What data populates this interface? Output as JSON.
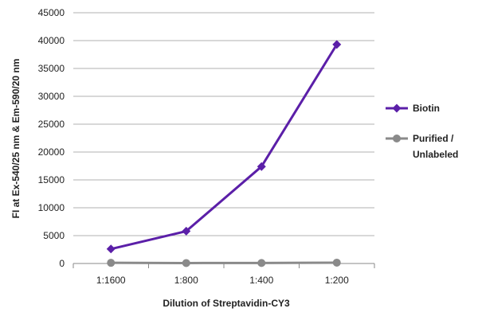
{
  "chart_data": {
    "type": "line",
    "categories": [
      "1:1600",
      "1:800",
      "1:400",
      "1:200"
    ],
    "series": [
      {
        "name": "Biotin",
        "values": [
          2600,
          5800,
          17400,
          39300
        ],
        "color": "#5b1fa8",
        "marker": "diamond"
      },
      {
        "name": "Purified / Unlabeled",
        "legend_lines": [
          "Purified /",
          "Unlabeled"
        ],
        "values": [
          120,
          80,
          90,
          150
        ],
        "color": "#8a8a8a",
        "marker": "circle"
      }
    ],
    "xlabel": "Dilution of Streptavidin-CY3",
    "ylabel": "FI at Ex-540/25 nm & Em-590/20 nm",
    "ylim": [
      0,
      45000
    ],
    "yticks": [
      0,
      5000,
      10000,
      15000,
      20000,
      25000,
      30000,
      35000,
      40000,
      45000
    ],
    "grid": true,
    "legend_position": "right"
  }
}
